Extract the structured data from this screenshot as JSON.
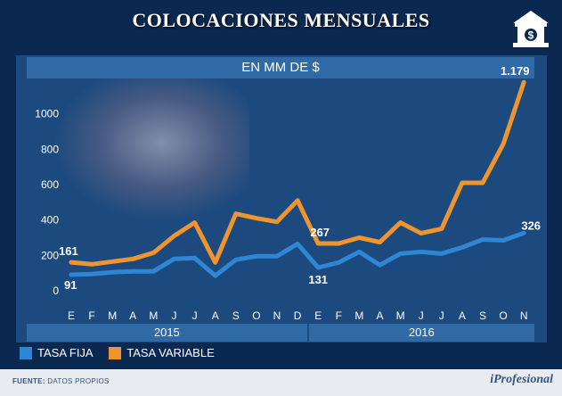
{
  "header": {
    "title": "COLOCACIONES MENSUALES"
  },
  "chart_data": {
    "type": "line",
    "subtitle": "EN MM DE $",
    "categories": [
      "E",
      "F",
      "M",
      "A",
      "M",
      "J",
      "J",
      "A",
      "S",
      "O",
      "N",
      "D",
      "E",
      "F",
      "M",
      "A",
      "M",
      "J",
      "J",
      "A",
      "S",
      "O",
      "N"
    ],
    "years": [
      {
        "label": "2015",
        "span": 12
      },
      {
        "label": "2016",
        "span": 11
      }
    ],
    "y_ticks": [
      "0",
      "200",
      "400",
      "600",
      "800",
      "1000"
    ],
    "ylim": [
      0,
      1200
    ],
    "grid": false,
    "legend_position": "bottom-left",
    "series": [
      {
        "name": "TASA FIJA",
        "color": "#2e86d4",
        "values": [
          91,
          95,
          105,
          110,
          110,
          180,
          185,
          85,
          175,
          195,
          195,
          265,
          131,
          160,
          220,
          145,
          210,
          220,
          210,
          245,
          290,
          285,
          326
        ]
      },
      {
        "name": "TASA VARIABLE",
        "color": "#f0952e",
        "values": [
          161,
          150,
          165,
          180,
          215,
          310,
          385,
          160,
          435,
          410,
          390,
          510,
          267,
          267,
          300,
          275,
          385,
          325,
          350,
          610,
          610,
          830,
          1179
        ]
      }
    ],
    "annotations": [
      {
        "series": 0,
        "index": 0,
        "text": "91"
      },
      {
        "series": 1,
        "index": 0,
        "text": "161"
      },
      {
        "series": 1,
        "index": 12,
        "text": "267"
      },
      {
        "series": 0,
        "index": 12,
        "text": "131"
      },
      {
        "series": 1,
        "index": 22,
        "text": "1.179"
      },
      {
        "series": 0,
        "index": 22,
        "text": "326"
      }
    ]
  },
  "footer": {
    "source_label": "FUENTE:",
    "source_value": "DATOS PROPIOS",
    "brand": "iProfesional"
  },
  "icons": {
    "bank": "bank-dollar-icon"
  }
}
